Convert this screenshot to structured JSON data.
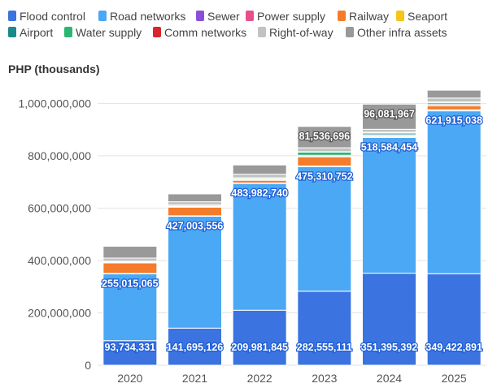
{
  "chart_data": {
    "type": "bar",
    "stacked": true,
    "ylabel": "PHP (thousands)",
    "ylim": [
      0,
      1060000000
    ],
    "yticks": [
      0,
      200000000,
      400000000,
      600000000,
      800000000,
      1000000000
    ],
    "ytick_labels": [
      "0",
      "200,000,000",
      "400,000,000",
      "600,000,000",
      "800,000,000",
      "1,000,000,000"
    ],
    "grid": true,
    "legend_position": "top",
    "categories": [
      "2020",
      "2021",
      "2022",
      "2023",
      "2024",
      "2025"
    ],
    "series": [
      {
        "name": "Flood control",
        "color": "#3b73e0",
        "values": [
          93734331,
          141695126,
          209981845,
          282555111,
          351395392,
          349422891
        ],
        "labels": [
          "93,734,331",
          "141,695,126",
          "209,981,845",
          "282,555,111",
          "351,395,392",
          "349,422,891"
        ]
      },
      {
        "name": "Road networks",
        "color": "#4aa8f5",
        "values": [
          255015065,
          427003556,
          483982740,
          475310752,
          518584454,
          621915038
        ],
        "labels": [
          "255,015,065",
          "427,003,556",
          "483,982,740",
          "475,310,752",
          "518,584,454",
          "621,915,038"
        ]
      },
      {
        "name": "Sewer",
        "color": "#8a4fd8",
        "values": [
          1000000,
          1000000,
          1200000,
          1500000,
          1500000,
          2000000
        ]
      },
      {
        "name": "Power supply",
        "color": "#e8508d",
        "values": [
          1000000,
          1000000,
          1000000,
          1500000,
          1500000,
          2000000
        ]
      },
      {
        "name": "Railway",
        "color": "#f57c2a",
        "values": [
          40000000,
          33000000,
          10000000,
          35000000,
          4000000,
          15000000
        ]
      },
      {
        "name": "Seaport",
        "color": "#f5c518",
        "values": [
          1500000,
          1500000,
          1500000,
          2000000,
          1500000,
          2000000
        ]
      },
      {
        "name": "Airport",
        "color": "#1a8a8a",
        "values": [
          2000000,
          2000000,
          3000000,
          4000000,
          5000000,
          5000000
        ]
      },
      {
        "name": "Water supply",
        "color": "#2bb673",
        "values": [
          2000000,
          4000000,
          4000000,
          12000000,
          5000000,
          6000000
        ]
      },
      {
        "name": "Comm networks",
        "color": "#d9262c",
        "values": [
          1000000,
          1000000,
          1000000,
          1500000,
          1500000,
          2000000
        ]
      },
      {
        "name": "Right-of-way",
        "color": "#c2c2c2",
        "values": [
          12000000,
          12000000,
          14000000,
          15000000,
          11000000,
          15000000
        ]
      },
      {
        "name": "Other infra assets",
        "color": "#999999",
        "values": [
          45000000,
          30000000,
          35000000,
          81536696,
          96081967,
          30000000
        ],
        "labels": [
          "",
          "",
          "",
          "81,536,696",
          "96,081,967",
          ""
        ]
      }
    ]
  }
}
